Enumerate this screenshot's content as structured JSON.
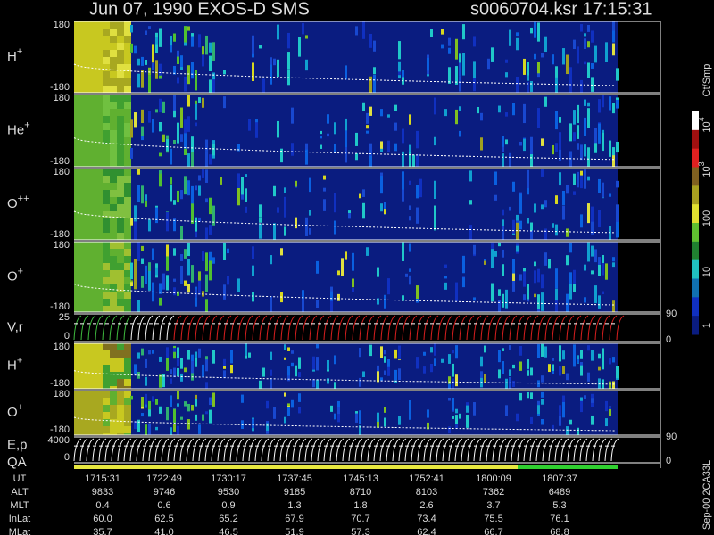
{
  "header": {
    "title": "Jun 07, 1990   EXOS-D SMS",
    "file": "s0060704.ksr  17:15:31"
  },
  "panels": [
    {
      "label": "H",
      "sup": "+",
      "top": "180",
      "bottom": "-180"
    },
    {
      "label": "He",
      "sup": "+",
      "top": "180",
      "bottom": "-180"
    },
    {
      "label": "O",
      "sup": "++",
      "top": "180",
      "bottom": "-180"
    },
    {
      "label": "O",
      "sup": "+",
      "top": "180",
      "bottom": "-180"
    },
    {
      "label": "V,r",
      "top": "25",
      "bottom": "0",
      "right_top": "90",
      "right_bottom": "0"
    },
    {
      "label": "H",
      "sup": "+",
      "top": "180",
      "bottom": "-180"
    },
    {
      "label": "O",
      "sup": "+",
      "top": "180",
      "bottom": "-180"
    },
    {
      "label": "E,p",
      "top": "4000",
      "bottom": "0",
      "right_top": "90",
      "right_bottom": "0"
    }
  ],
  "qa": "QA",
  "colorbar": {
    "unit": "Ct/Smp",
    "ticks": [
      {
        "base": "10",
        "exp": "4"
      },
      {
        "base": "10",
        "exp": "3"
      },
      "100",
      "10",
      "1"
    ]
  },
  "footnote": "Sep-00  2CA33L",
  "table": {
    "rows": [
      {
        "label": "UT",
        "values": [
          "1715:31",
          "1722:49",
          "1730:17",
          "1737:45",
          "1745:13",
          "1752:41",
          "1800:09",
          "1807:37"
        ]
      },
      {
        "label": "ALT",
        "values": [
          "9833",
          "9746",
          "9530",
          "9185",
          "8710",
          "8103",
          "7362",
          "6489"
        ]
      },
      {
        "label": "MLT",
        "values": [
          "0.4",
          "0.6",
          "0.9",
          "1.3",
          "1.8",
          "2.6",
          "3.7",
          "5.3"
        ]
      },
      {
        "label": "InLat",
        "values": [
          "60.0",
          "62.5",
          "65.2",
          "67.9",
          "70.7",
          "73.4",
          "75.5",
          "76.1"
        ]
      },
      {
        "label": "MLat",
        "values": [
          "35.7",
          "41.0",
          "46.5",
          "51.9",
          "57.3",
          "62.4",
          "66.7",
          "68.8"
        ]
      }
    ]
  }
}
